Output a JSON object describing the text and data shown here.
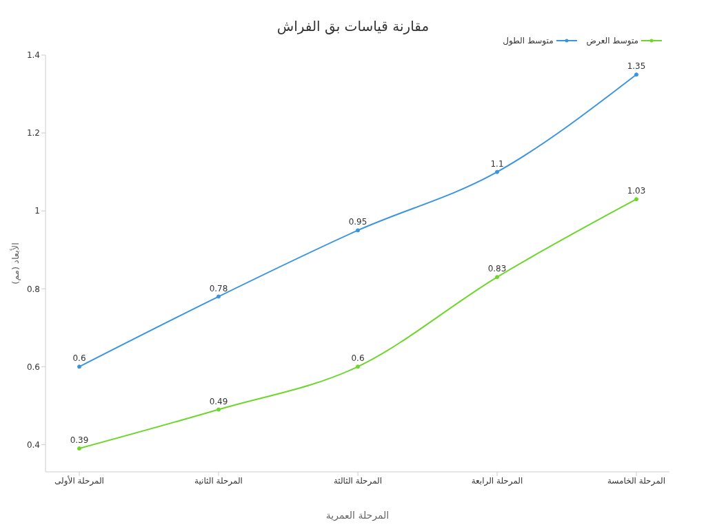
{
  "chart_data": {
    "type": "line",
    "title": "مقارنة قياسات بق الفراش",
    "xlabel": "المرحلة العمرية",
    "ylabel": "الأبعاد (مم)",
    "categories": [
      "المرحلة الأولى",
      "المرحلة الثانية",
      "المرحلة الثالثة",
      "المرحلة الرابعة",
      "المرحلة الخامسة"
    ],
    "series": [
      {
        "name": "متوسط الطول",
        "color": "#3b94e0",
        "values": [
          0.6,
          0.78,
          0.95,
          1.1,
          1.35
        ]
      },
      {
        "name": "متوسط العرض",
        "color": "#6cd62b",
        "values": [
          0.39,
          0.49,
          0.6,
          0.83,
          1.03
        ]
      }
    ],
    "ylim": [
      0.33,
      1.4
    ],
    "yticks": [
      0.4,
      0.6,
      0.8,
      1,
      1.2,
      1.4
    ],
    "grid": false,
    "legend": "top right",
    "marker": "circle",
    "line_style": "solid",
    "data_labels": true
  }
}
